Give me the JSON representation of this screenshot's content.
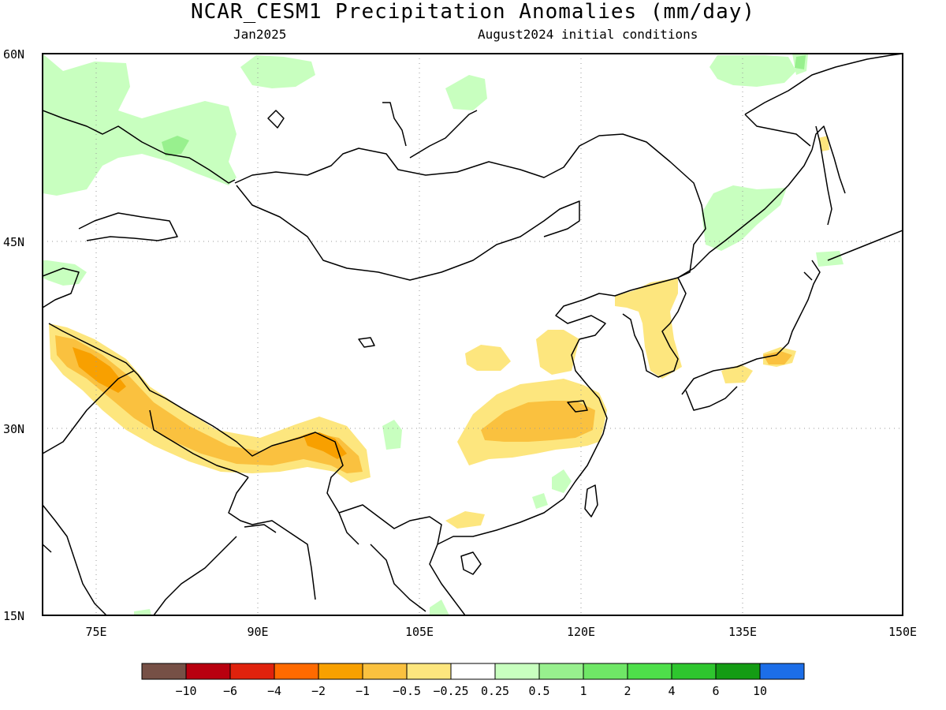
{
  "title": "NCAR_CESM1 Precipitation Anomalies (mm/day)",
  "subtitle_left": "Jan2025",
  "subtitle_right": "August2024 initial conditions",
  "map": {
    "lat_labels": [
      "60N",
      "45N",
      "30N",
      "15N"
    ],
    "lon_labels": [
      "75E",
      "90E",
      "105E",
      "120E",
      "135E",
      "150E"
    ],
    "lat_values": [
      60,
      45,
      30,
      15
    ],
    "lon_values": [
      75,
      90,
      105,
      120,
      135,
      150
    ],
    "extent": {
      "lon": [
        70,
        150
      ],
      "lat": [
        15,
        60
      ]
    }
  },
  "colorbar": {
    "colors": [
      "#765046",
      "#b8000f",
      "#e0220d",
      "#ff6a00",
      "#f8a000",
      "#fac13f",
      "#fde67e",
      "#ffffff",
      "#c8ffbf",
      "#98f08e",
      "#6fe766",
      "#4edf4a",
      "#2ec62e",
      "#149c14",
      "#1c6ee8"
    ],
    "labels": [
      "-10",
      "-6",
      "-4",
      "-2",
      "-1",
      "-0.5",
      "-0.25",
      "0.25",
      "0.5",
      "1",
      "2",
      "4",
      "6",
      "10"
    ]
  },
  "palette": {
    "wet_light": "#c8ffbf",
    "wet": "#98f08e",
    "dry_light": "#fde67e",
    "dry": "#fac13f",
    "dry_strong": "#f8a000"
  }
}
